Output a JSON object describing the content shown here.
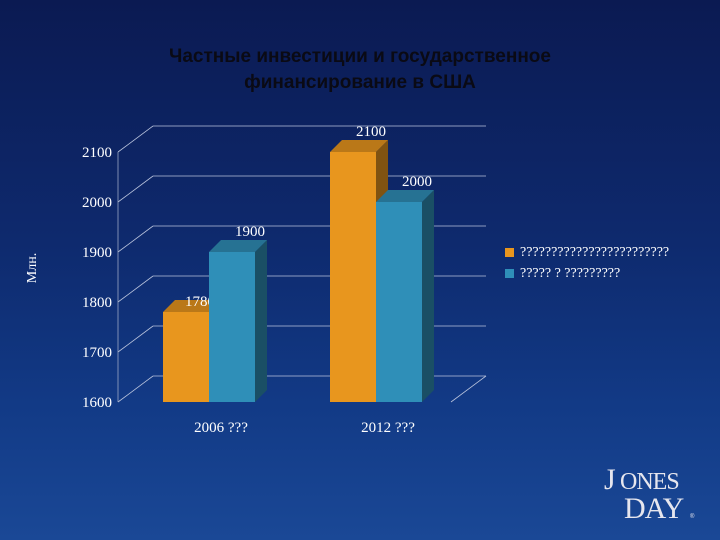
{
  "title": {
    "line1": "Частные инвестиции и государственное",
    "line2": "финансирование в США"
  },
  "chart_data": {
    "type": "bar",
    "title": "Частные инвестиции и государственное финансирование в США",
    "ylabel": "Млн.",
    "xlabel": "",
    "categories": [
      "2006 ???",
      "2012 ???"
    ],
    "series": [
      {
        "name": "????????????????????????",
        "color": "#e8961e",
        "values": [
          1780,
          2100
        ]
      },
      {
        "name": "????? ? ?????????",
        "color": "#2f8fb8",
        "values": [
          1900,
          2000
        ]
      }
    ],
    "ylim": [
      1600,
      2100
    ],
    "yticks": [
      1600,
      1700,
      1800,
      1900,
      2000,
      2100
    ],
    "data_labels": true,
    "grid": true,
    "legend_position": "right",
    "style": "3d"
  },
  "legend": {
    "items": [
      {
        "label": "????????????????????????",
        "color": "#e8961e"
      },
      {
        "label": "????? ? ?????????",
        "color": "#2f8fb8"
      }
    ]
  },
  "logo": {
    "line1": "JONES",
    "line2": "DAY",
    "mark": "®"
  }
}
